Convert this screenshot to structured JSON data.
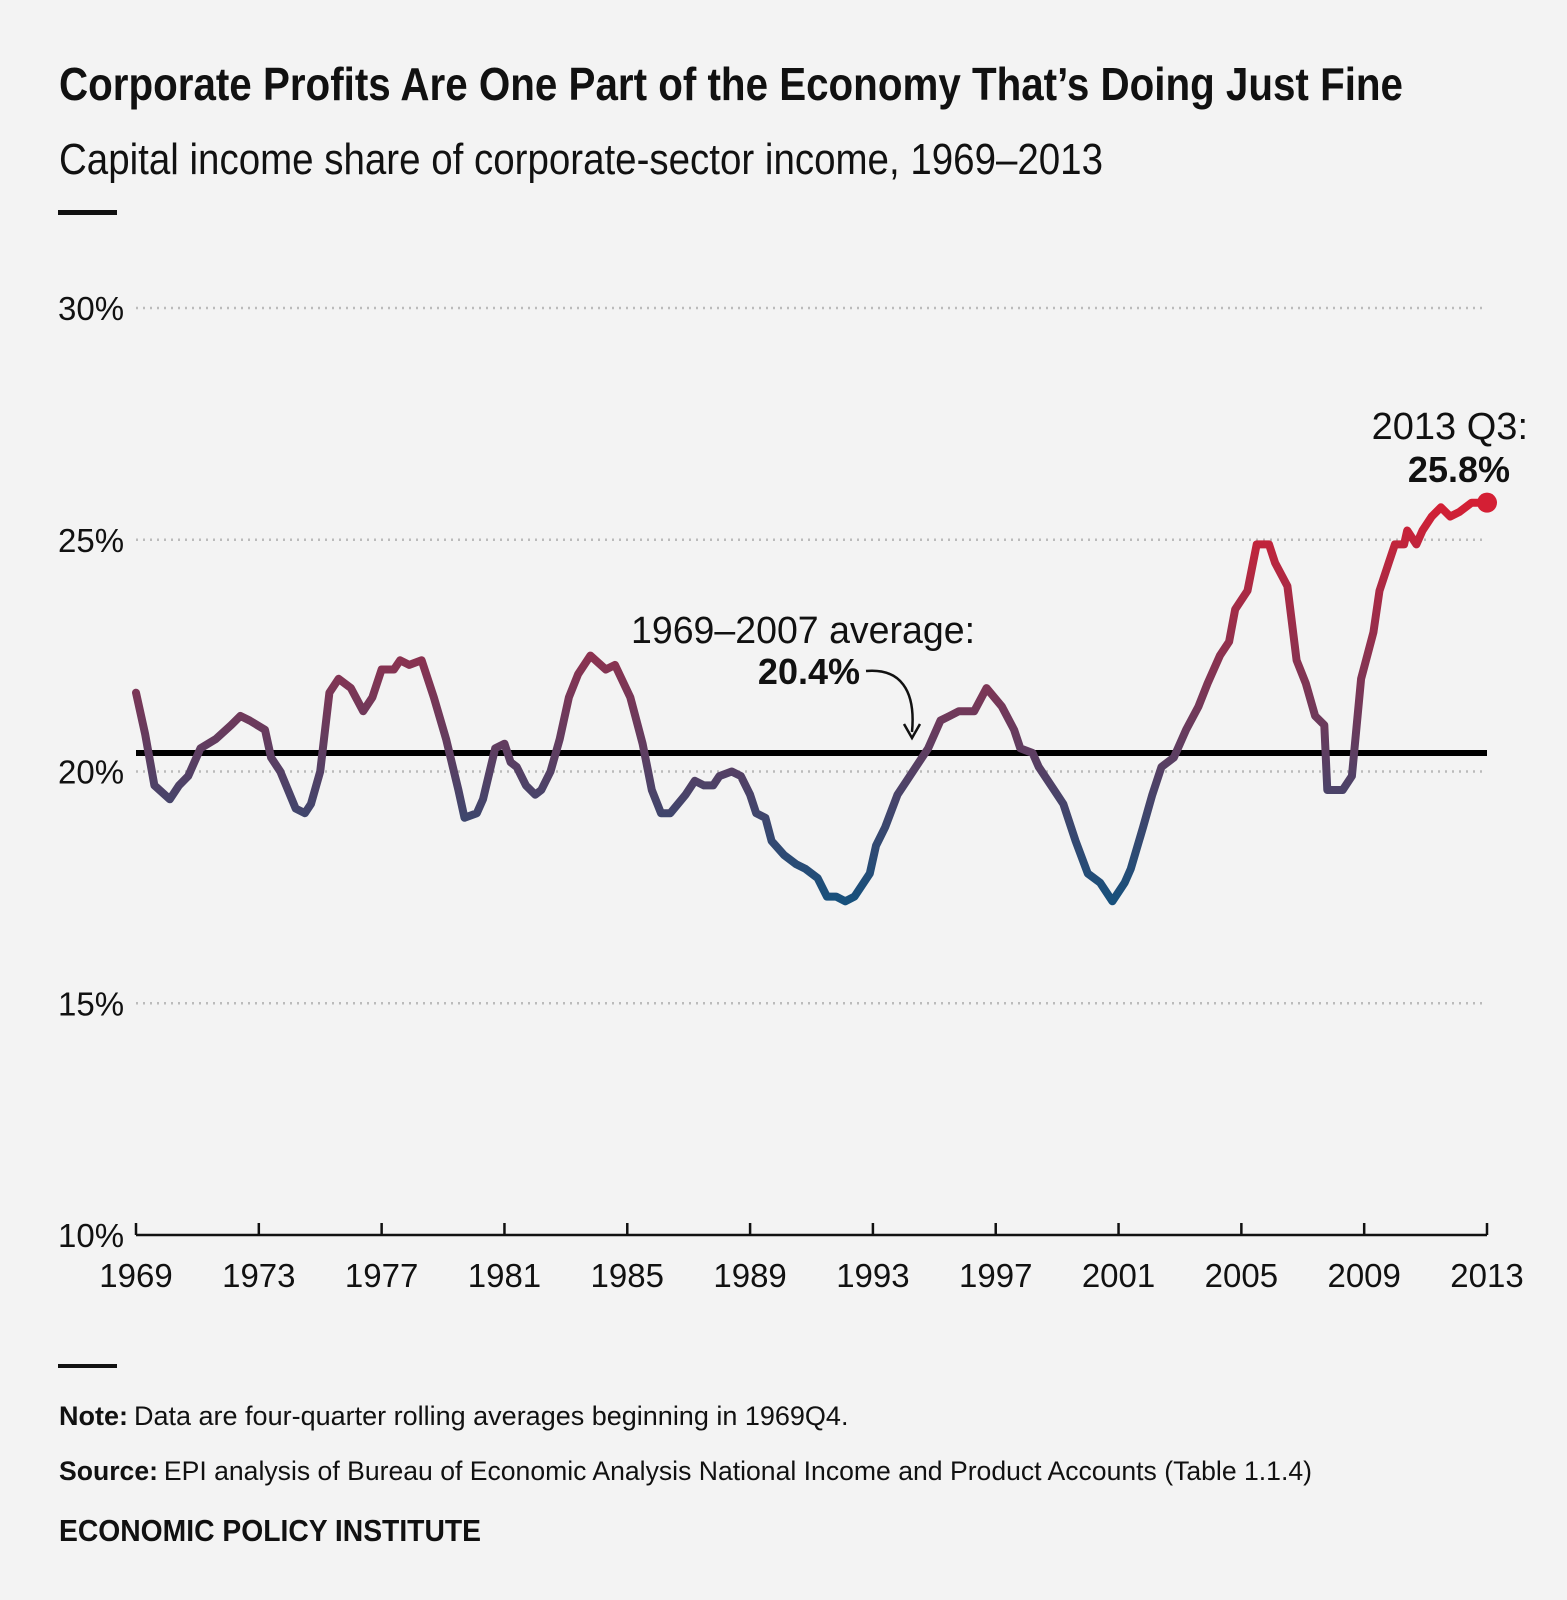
{
  "chart_data": {
    "type": "line",
    "title": "Corporate Profits Are One Part of the Economy That’s Doing Just Fine",
    "subtitle": "Capital income share of corporate-sector income, 1969–2013",
    "x": [
      1969.0,
      1969.3,
      1969.6,
      1970.1,
      1970.4,
      1970.7,
      1971.1,
      1971.6,
      1972.1,
      1972.4,
      1972.7,
      1973.2,
      1973.4,
      1973.7,
      1974.2,
      1974.5,
      1974.7,
      1975.0,
      1975.3,
      1975.6,
      1976.0,
      1976.4,
      1976.7,
      1977.0,
      1977.4,
      1977.6,
      1977.9,
      1978.3,
      1978.7,
      1979.1,
      1979.5,
      1979.7,
      1980.1,
      1980.3,
      1980.7,
      1981.0,
      1981.2,
      1981.4,
      1981.7,
      1982.0,
      1982.2,
      1982.5,
      1982.8,
      1983.1,
      1983.4,
      1983.8,
      1984.3,
      1984.6,
      1985.1,
      1985.5,
      1985.8,
      1986.1,
      1986.4,
      1986.9,
      1987.2,
      1987.5,
      1987.8,
      1988.0,
      1988.4,
      1988.7,
      1989.0,
      1989.2,
      1989.5,
      1989.7,
      1990.1,
      1990.5,
      1990.8,
      1991.2,
      1991.5,
      1991.8,
      1992.1,
      1992.4,
      1992.9,
      1993.1,
      1993.4,
      1993.8,
      1994.1,
      1994.5,
      1994.8,
      1995.2,
      1995.5,
      1995.8,
      1996.3,
      1996.7,
      1997.2,
      1997.6,
      1997.8,
      1998.2,
      1998.4,
      1998.9,
      1999.2,
      1999.6,
      2000.0,
      2000.4,
      2000.8,
      2001.2,
      2001.4,
      2001.8,
      2002.1,
      2002.4,
      2002.8,
      2003.2,
      2003.6,
      2003.9,
      2004.3,
      2004.6,
      2004.8,
      2005.2,
      2005.5,
      2005.9,
      2006.1,
      2006.5,
      2006.8,
      2007.1,
      2007.4,
      2007.7,
      2007.8,
      2008.3,
      2008.6,
      2008.9,
      2009.3,
      2009.5,
      2009.8,
      2010.0,
      2010.3,
      2010.4,
      2010.7,
      2010.9,
      2011.2,
      2011.5,
      2011.8,
      2012.1,
      2012.5,
      2013.0
    ],
    "series": [
      {
        "values": [
          21.7,
          20.8,
          19.7,
          19.4,
          19.7,
          19.9,
          20.5,
          20.7,
          21.0,
          21.2,
          21.1,
          20.9,
          20.3,
          20.0,
          19.2,
          19.1,
          19.3,
          20.0,
          21.7,
          22.0,
          21.8,
          21.3,
          21.6,
          22.2,
          22.2,
          22.4,
          22.3,
          22.4,
          21.6,
          20.7,
          19.6,
          19.0,
          19.1,
          19.4,
          20.5,
          20.6,
          20.2,
          20.1,
          19.7,
          19.5,
          19.6,
          20.0,
          20.7,
          21.6,
          22.1,
          22.5,
          22.2,
          22.3,
          21.6,
          20.6,
          19.6,
          19.1,
          19.1,
          19.5,
          19.8,
          19.7,
          19.7,
          19.9,
          20.0,
          19.9,
          19.5,
          19.1,
          19.0,
          18.5,
          18.2,
          18.0,
          17.9,
          17.7,
          17.3,
          17.3,
          17.2,
          17.3,
          17.8,
          18.4,
          18.8,
          19.5,
          19.8,
          20.2,
          20.5,
          21.1,
          21.2,
          21.3,
          21.3,
          21.8,
          21.4,
          20.9,
          20.5,
          20.4,
          20.1,
          19.6,
          19.3,
          18.5,
          17.8,
          17.6,
          17.2,
          17.6,
          17.9,
          18.8,
          19.5,
          20.1,
          20.3,
          20.9,
          21.4,
          21.9,
          22.5,
          22.8,
          23.5,
          23.9,
          24.9,
          24.9,
          24.5,
          24.0,
          22.4,
          21.9,
          21.2,
          21.0,
          19.6,
          19.6,
          19.9,
          22.0,
          23.0,
          23.9,
          24.5,
          24.9,
          24.9,
          25.2,
          24.9,
          25.2,
          25.5,
          25.7,
          25.5,
          25.6,
          25.8,
          25.8
        ],
        "colors": [
          "#17507c",
          "#d41f34"
        ]
      }
    ],
    "average": {
      "value": 20.4,
      "label": "20.4%",
      "text": "1969–2007 average:",
      "color": "#000000"
    },
    "end_annotation": {
      "text": "2013 Q3:",
      "label": "25.8%"
    },
    "xlim": [
      1969,
      2013
    ],
    "xticks": [
      1969,
      1973,
      1977,
      1981,
      1985,
      1989,
      1993,
      1997,
      2001,
      2005,
      2009,
      2013
    ],
    "ylim": [
      10,
      30
    ],
    "yticks": [
      {
        "value": 10,
        "label": "10%"
      },
      {
        "value": 15,
        "label": "15%"
      },
      {
        "value": 20,
        "label": "20%"
      },
      {
        "value": 25,
        "label": "25%"
      },
      {
        "value": 30,
        "label": "30%"
      }
    ],
    "grid": true,
    "note": {
      "label": "Note:",
      "text": "Data are four-quarter rolling averages beginning in 1969Q4."
    },
    "source": {
      "label": "Source:",
      "text": "EPI analysis of Bureau of Economic Analysis National Income and Product Accounts (Table 1.1.4)"
    },
    "footer": "ECONOMIC POLICY INSTITUTE"
  }
}
